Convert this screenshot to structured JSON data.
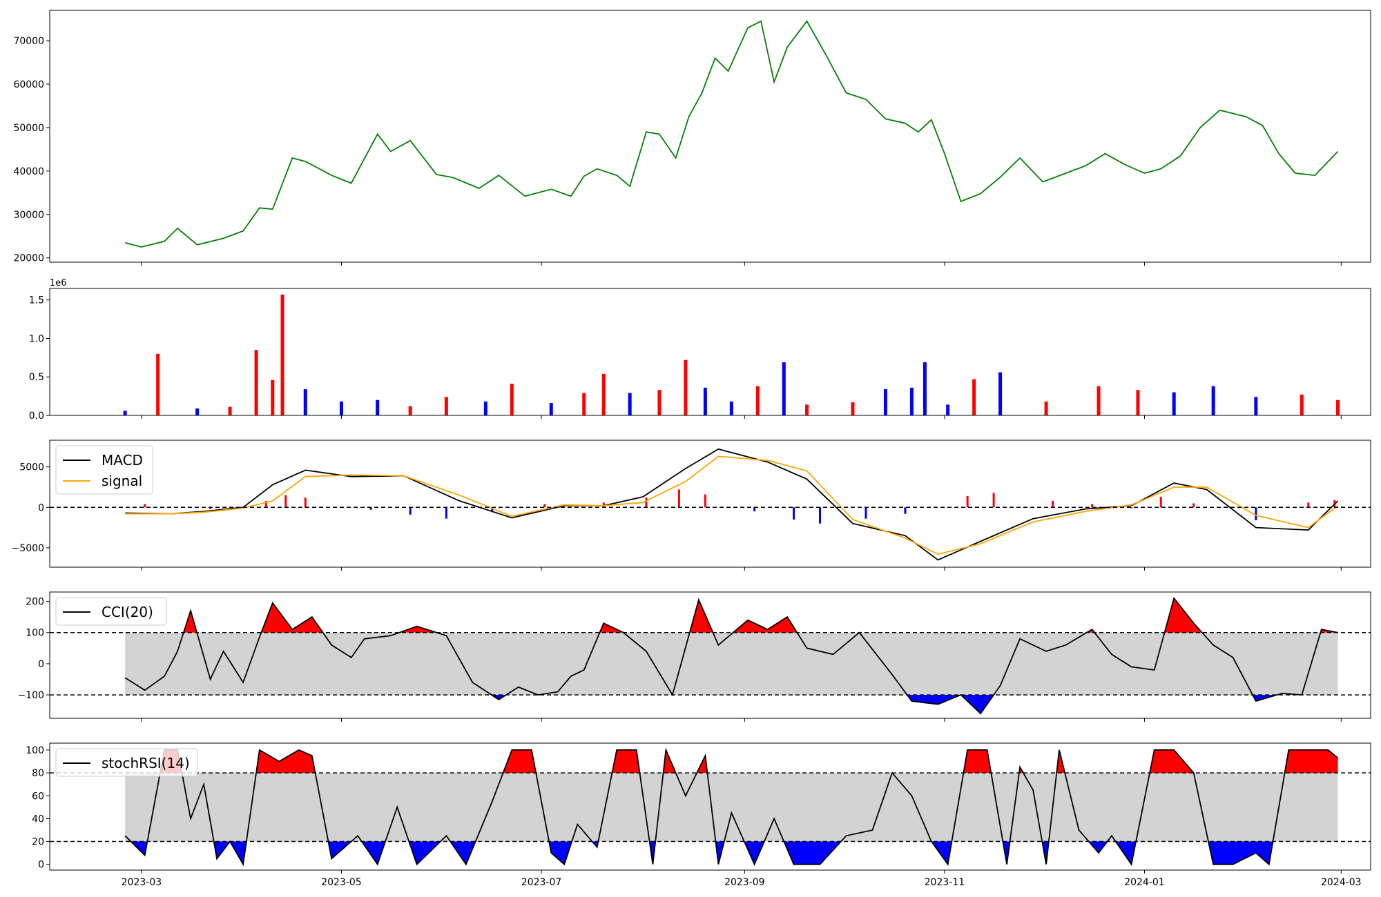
{
  "figure": {
    "x_tick_labels": [
      "2023-03",
      "2023-05",
      "2023-07",
      "2023-09",
      "2023-11",
      "2024-01",
      "2024-03"
    ],
    "x_tick_dates": [
      "2023-03-01",
      "2023-05-01",
      "2023-07-01",
      "2023-09-01",
      "2023-11-01",
      "2024-01-01",
      "2024-03-01"
    ],
    "x_range": [
      "2023-02-01",
      "2024-03-10"
    ],
    "data_range": [
      "2023-02-24",
      "2024-02-29"
    ],
    "colors": {
      "up": "#ff0000",
      "down": "#0000ff",
      "price": "#008000",
      "macd": "#000000",
      "signal": "#ffa500",
      "band": "#d3d3d3"
    }
  },
  "chart_data": [
    {
      "type": "line",
      "name": "price",
      "ylim": [
        19000,
        77000
      ],
      "yticks": [
        20000,
        30000,
        40000,
        50000,
        60000,
        70000
      ],
      "ytick_labels": [
        "20000",
        "30000",
        "40000",
        "50000",
        "60000",
        "70000"
      ],
      "x": [
        "2023-02-24",
        "2023-03-01",
        "2023-03-08",
        "2023-03-12",
        "2023-03-18",
        "2023-03-26",
        "2023-04-01",
        "2023-04-06",
        "2023-04-10",
        "2023-04-16",
        "2023-04-20",
        "2023-04-28",
        "2023-05-04",
        "2023-05-12",
        "2023-05-16",
        "2023-05-22",
        "2023-05-30",
        "2023-06-04",
        "2023-06-12",
        "2023-06-18",
        "2023-06-26",
        "2023-07-04",
        "2023-07-10",
        "2023-07-14",
        "2023-07-18",
        "2023-07-24",
        "2023-07-28",
        "2023-08-02",
        "2023-08-06",
        "2023-08-11",
        "2023-08-15",
        "2023-08-19",
        "2023-08-23",
        "2023-08-27",
        "2023-09-02",
        "2023-09-06",
        "2023-09-10",
        "2023-09-14",
        "2023-09-20",
        "2023-09-26",
        "2023-10-02",
        "2023-10-08",
        "2023-10-14",
        "2023-10-20",
        "2023-10-24",
        "2023-10-28",
        "2023-11-01",
        "2023-11-06",
        "2023-11-12",
        "2023-11-18",
        "2023-11-24",
        "2023-12-01",
        "2023-12-08",
        "2023-12-14",
        "2023-12-20",
        "2023-12-26",
        "2024-01-01",
        "2024-01-06",
        "2024-01-12",
        "2024-01-18",
        "2024-01-24",
        "2024-02-01",
        "2024-02-06",
        "2024-02-11",
        "2024-02-16",
        "2024-02-22",
        "2024-02-29"
      ],
      "y": [
        23500,
        22500,
        23800,
        26800,
        23000,
        24500,
        26200,
        31500,
        31200,
        43000,
        42200,
        39000,
        37200,
        48500,
        44500,
        47000,
        39200,
        38500,
        36000,
        39000,
        34200,
        35800,
        34200,
        38800,
        40500,
        39000,
        36500,
        49000,
        48500,
        43000,
        52500,
        58000,
        66000,
        63000,
        73000,
        74500,
        60500,
        68500,
        74500,
        66500,
        58000,
        56500,
        52000,
        51000,
        49000,
        51800,
        44000,
        33000,
        34800,
        38600,
        43000,
        37500,
        39500,
        41200,
        44000,
        41500,
        39500,
        40500,
        43500,
        50000,
        54000,
        52500,
        50500,
        44000,
        39500,
        39000,
        44500
      ]
    },
    {
      "type": "bar",
      "name": "volume",
      "multiplier_label": "1e6",
      "ylim": [
        0,
        1650000
      ],
      "yticks": [
        0,
        500000,
        1000000,
        1500000
      ],
      "ytick_labels": [
        "0.0",
        "0.5",
        "1.0",
        "1.5"
      ],
      "x": [
        "2023-02-24",
        "2023-03-06",
        "2023-03-18",
        "2023-03-28",
        "2023-04-05",
        "2023-04-10",
        "2023-04-13",
        "2023-04-20",
        "2023-05-01",
        "2023-05-12",
        "2023-05-22",
        "2023-06-02",
        "2023-06-14",
        "2023-06-22",
        "2023-07-04",
        "2023-07-14",
        "2023-07-20",
        "2023-07-28",
        "2023-08-06",
        "2023-08-14",
        "2023-08-20",
        "2023-08-28",
        "2023-09-05",
        "2023-09-13",
        "2023-09-20",
        "2023-10-04",
        "2023-10-14",
        "2023-10-22",
        "2023-10-26",
        "2023-11-02",
        "2023-11-10",
        "2023-11-18",
        "2023-12-02",
        "2023-12-18",
        "2023-12-30",
        "2024-01-10",
        "2024-01-22",
        "2024-02-04",
        "2024-02-18",
        "2024-02-29"
      ],
      "values": [
        60000,
        800000,
        90000,
        110000,
        850000,
        460000,
        1570000,
        340000,
        180000,
        200000,
        120000,
        240000,
        180000,
        410000,
        160000,
        290000,
        540000,
        290000,
        330000,
        720000,
        360000,
        180000,
        380000,
        690000,
        140000,
        170000,
        340000,
        360000,
        690000,
        140000,
        470000,
        560000,
        180000,
        380000,
        330000,
        300000,
        380000,
        240000,
        270000,
        200000
      ],
      "up": [
        false,
        true,
        false,
        true,
        true,
        true,
        true,
        false,
        false,
        false,
        true,
        true,
        false,
        true,
        false,
        true,
        true,
        false,
        true,
        true,
        false,
        false,
        true,
        false,
        true,
        true,
        false,
        false,
        false,
        false,
        true,
        false,
        true,
        true,
        true,
        false,
        false,
        false,
        true,
        true
      ]
    },
    {
      "type": "line",
      "name": "macd",
      "legend": [
        "MACD",
        "signal"
      ],
      "ylim": [
        -7400,
        8300
      ],
      "yticks": [
        -5000,
        0,
        5000
      ],
      "ytick_labels": [
        "−5000",
        "0",
        "5000"
      ],
      "x": [
        "2023-02-24",
        "2023-03-10",
        "2023-03-20",
        "2023-04-01",
        "2023-04-10",
        "2023-04-20",
        "2023-05-04",
        "2023-05-20",
        "2023-06-06",
        "2023-06-22",
        "2023-07-08",
        "2023-07-20",
        "2023-08-01",
        "2023-08-14",
        "2023-08-24",
        "2023-09-08",
        "2023-09-20",
        "2023-10-04",
        "2023-10-20",
        "2023-10-30",
        "2023-11-12",
        "2023-11-28",
        "2023-12-14",
        "2023-12-28",
        "2024-01-10",
        "2024-01-20",
        "2024-02-04",
        "2024-02-20",
        "2024-02-29"
      ],
      "series": [
        {
          "name": "MACD",
          "values": [
            -700,
            -800,
            -500,
            0,
            2800,
            4600,
            3800,
            3900,
            800,
            -1300,
            200,
            200,
            1300,
            4800,
            7200,
            5600,
            3500,
            -2000,
            -3500,
            -6500,
            -4200,
            -1400,
            -200,
            200,
            3000,
            2200,
            -2500,
            -2800,
            800
          ]
        },
        {
          "name": "signal",
          "values": [
            -800,
            -800,
            -600,
            -100,
            800,
            3800,
            4000,
            3900,
            1500,
            -1100,
            300,
            200,
            600,
            3200,
            6300,
            5800,
            4500,
            -1500,
            -3800,
            -5800,
            -4500,
            -1800,
            -500,
            300,
            2500,
            2500,
            -1000,
            -2500,
            200
          ]
        },
        {
          "name": "hist",
          "x": [
            "2023-03-02",
            "2023-03-22",
            "2023-04-08",
            "2023-04-14",
            "2023-04-20",
            "2023-05-10",
            "2023-05-22",
            "2023-06-02",
            "2023-06-16",
            "2023-07-02",
            "2023-07-20",
            "2023-08-02",
            "2023-08-12",
            "2023-08-20",
            "2023-09-04",
            "2023-09-16",
            "2023-09-24",
            "2023-10-08",
            "2023-10-20",
            "2023-11-08",
            "2023-11-16",
            "2023-12-04",
            "2023-12-16",
            "2023-12-28",
            "2024-01-06",
            "2024-01-16",
            "2024-02-04",
            "2024-02-20",
            "2024-02-28"
          ],
          "values": [
            400,
            -200,
            800,
            1500,
            1200,
            -300,
            -900,
            -1400,
            -600,
            400,
            600,
            1200,
            2200,
            1600,
            -500,
            -1500,
            -2000,
            -1400,
            -800,
            1400,
            1800,
            800,
            400,
            -100,
            1300,
            500,
            -1600,
            600,
            900
          ]
        }
      ]
    },
    {
      "type": "line",
      "name": "cci",
      "legend": [
        "CCI(20)"
      ],
      "ylim": [
        -175,
        230
      ],
      "yticks": [
        -100,
        0,
        100,
        200
      ],
      "ytick_labels": [
        "−100",
        "0",
        "100",
        "200"
      ],
      "thresholds": [
        -100,
        100
      ],
      "x": [
        "2023-02-24",
        "2023-03-02",
        "2023-03-08",
        "2023-03-12",
        "2023-03-16",
        "2023-03-22",
        "2023-03-26",
        "2023-04-01",
        "2023-04-06",
        "2023-04-10",
        "2023-04-16",
        "2023-04-22",
        "2023-04-28",
        "2023-05-04",
        "2023-05-08",
        "2023-05-16",
        "2023-05-24",
        "2023-06-02",
        "2023-06-10",
        "2023-06-18",
        "2023-06-24",
        "2023-06-30",
        "2023-07-06",
        "2023-07-10",
        "2023-07-14",
        "2023-07-20",
        "2023-07-26",
        "2023-08-02",
        "2023-08-10",
        "2023-08-18",
        "2023-08-24",
        "2023-09-02",
        "2023-09-08",
        "2023-09-14",
        "2023-09-20",
        "2023-09-28",
        "2023-10-06",
        "2023-10-16",
        "2023-10-22",
        "2023-10-30",
        "2023-11-06",
        "2023-11-12",
        "2023-11-18",
        "2023-11-24",
        "2023-12-02",
        "2023-12-08",
        "2023-12-16",
        "2023-12-22",
        "2023-12-28",
        "2024-01-04",
        "2024-01-10",
        "2024-01-16",
        "2024-01-22",
        "2024-01-28",
        "2024-02-04",
        "2024-02-12",
        "2024-02-18",
        "2024-02-24",
        "2024-02-29"
      ],
      "y": [
        -45,
        -85,
        -40,
        40,
        170,
        -50,
        40,
        -60,
        85,
        195,
        110,
        150,
        60,
        20,
        80,
        90,
        120,
        90,
        -60,
        -115,
        -75,
        -100,
        -90,
        -40,
        -20,
        130,
        100,
        40,
        -100,
        205,
        60,
        140,
        110,
        150,
        50,
        30,
        100,
        -35,
        -120,
        -130,
        -100,
        -160,
        -70,
        80,
        40,
        60,
        110,
        30,
        -10,
        -20,
        210,
        130,
        60,
        20,
        -120,
        -95,
        -100,
        110,
        100
      ]
    },
    {
      "type": "line",
      "name": "stochrsi",
      "legend": [
        "stochRSI(14)"
      ],
      "ylim": [
        -5,
        106
      ],
      "yticks": [
        0,
        20,
        40,
        60,
        80,
        100
      ],
      "ytick_labels": [
        "0",
        "20",
        "40",
        "60",
        "80",
        "100"
      ],
      "thresholds": [
        20,
        80
      ],
      "x": [
        "2023-02-24",
        "2023-03-02",
        "2023-03-08",
        "2023-03-12",
        "2023-03-16",
        "2023-03-20",
        "2023-03-24",
        "2023-03-28",
        "2023-04-01",
        "2023-04-06",
        "2023-04-12",
        "2023-04-18",
        "2023-04-22",
        "2023-04-28",
        "2023-05-06",
        "2023-05-12",
        "2023-05-18",
        "2023-05-24",
        "2023-06-02",
        "2023-06-08",
        "2023-06-16",
        "2023-06-22",
        "2023-06-28",
        "2023-07-04",
        "2023-07-08",
        "2023-07-12",
        "2023-07-18",
        "2023-07-24",
        "2023-07-30",
        "2023-08-04",
        "2023-08-08",
        "2023-08-14",
        "2023-08-20",
        "2023-08-24",
        "2023-08-28",
        "2023-09-04",
        "2023-09-10",
        "2023-09-16",
        "2023-09-24",
        "2023-10-02",
        "2023-10-10",
        "2023-10-16",
        "2023-10-22",
        "2023-10-28",
        "2023-11-02",
        "2023-11-08",
        "2023-11-14",
        "2023-11-20",
        "2023-11-24",
        "2023-11-28",
        "2023-12-02",
        "2023-12-06",
        "2023-12-12",
        "2023-12-18",
        "2023-12-22",
        "2023-12-28",
        "2024-01-04",
        "2024-01-10",
        "2024-01-16",
        "2024-01-22",
        "2024-01-28",
        "2024-02-04",
        "2024-02-08",
        "2024-02-14",
        "2024-02-20",
        "2024-02-26",
        "2024-02-29"
      ],
      "y": [
        25,
        8,
        100,
        100,
        40,
        70,
        5,
        20,
        0,
        100,
        90,
        100,
        95,
        5,
        25,
        0,
        50,
        0,
        25,
        0,
        55,
        100,
        100,
        10,
        0,
        35,
        15,
        100,
        100,
        0,
        100,
        60,
        95,
        0,
        45,
        0,
        40,
        0,
        0,
        25,
        30,
        80,
        60,
        20,
        0,
        100,
        100,
        0,
        85,
        65,
        0,
        100,
        30,
        10,
        25,
        0,
        100,
        100,
        80,
        0,
        0,
        10,
        0,
        100,
        100,
        100,
        93
      ]
    }
  ]
}
